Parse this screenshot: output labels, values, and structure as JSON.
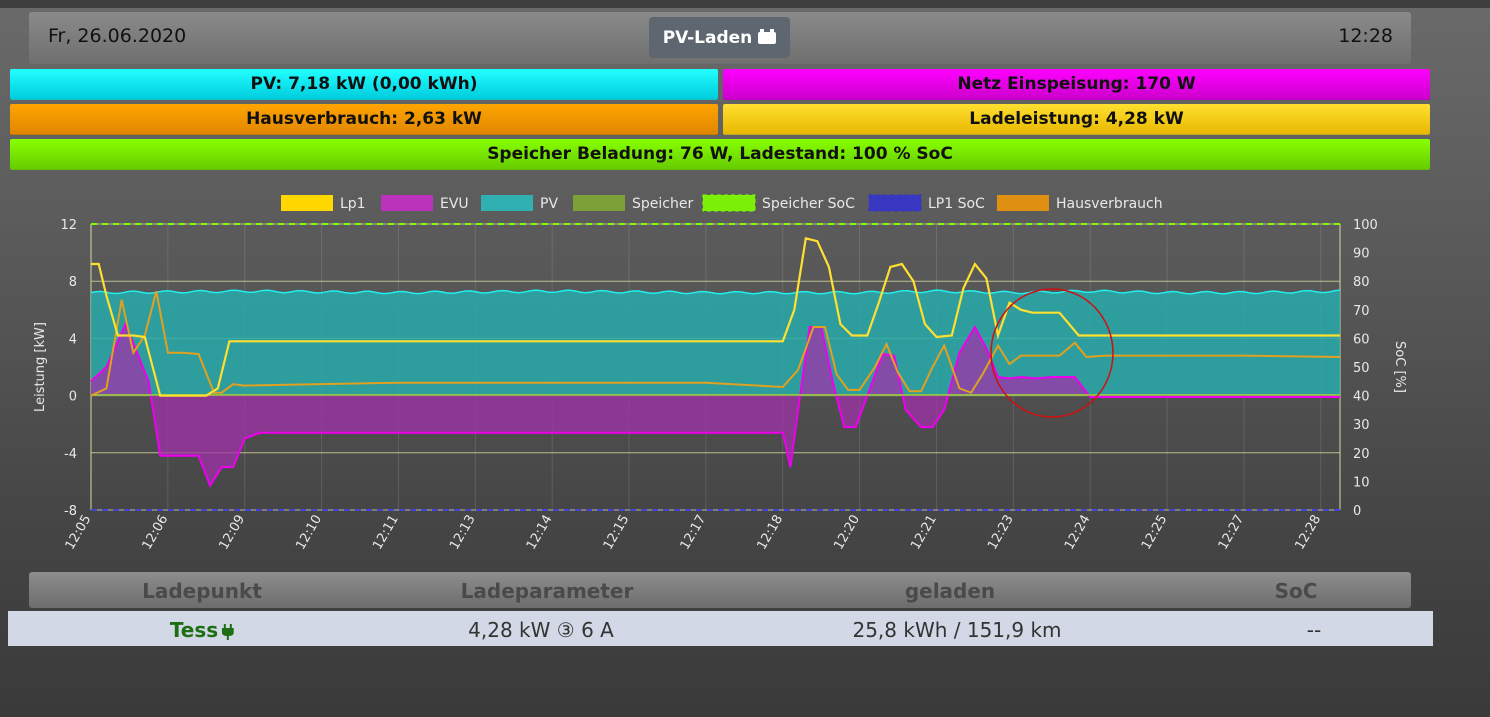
{
  "header": {
    "date": "Fr, 26.06.2020",
    "mode_label": "PV-Laden",
    "mode_icon": "car-battery-icon",
    "time": "12:28"
  },
  "status_bars": {
    "pv": "PV: 7,18 kW (0,00 kWh)",
    "netz": "Netz Einspeisung: 170 W",
    "hausverbrauch": "Hausverbrauch: 2,63 kW",
    "ladeleistung": "Ladeleistung: 4,28 kW",
    "speicher": "Speicher Beladung: 76 W, Ladestand: 100 % SoC"
  },
  "colors": {
    "pv": "#00ffff",
    "netz": "#ff00ff",
    "haus": "#ffa500",
    "lade": "#ffd700",
    "speicher": "#7fff00"
  },
  "chart_data": {
    "type": "line",
    "ylabel": "Leistung [kW]",
    "y2label": "SoC [%]",
    "ylim": [
      -8,
      12
    ],
    "yticks": [
      -8,
      -4,
      0,
      4,
      8,
      12
    ],
    "y2lim": [
      0,
      100
    ],
    "y2ticks": [
      0,
      10,
      20,
      30,
      40,
      50,
      60,
      70,
      80,
      90,
      100
    ],
    "x_ticks": [
      "12:05",
      "12:06",
      "12:09",
      "12:10",
      "12:11",
      "12:13",
      "12:14",
      "12:15",
      "12:17",
      "12:18",
      "12:20",
      "12:21",
      "12:23",
      "12:24",
      "12:25",
      "12:27",
      "12:28"
    ],
    "x_min_index": 0,
    "x_max_index": 16.25,
    "legend": [
      {
        "name": "Lp1",
        "color": "#ffd700",
        "dashed": false
      },
      {
        "name": "EVU",
        "color": "#bb33bb",
        "dashed": false
      },
      {
        "name": "PV",
        "color": "#30b0b0",
        "dashed": false
      },
      {
        "name": "Speicher",
        "color": "#7da038",
        "dashed": false
      },
      {
        "name": "Speicher SoC",
        "color": "#7fff00",
        "dashed": true
      },
      {
        "name": "LP1 SoC",
        "color": "#3333cc",
        "dashed": true
      },
      {
        "name": "Hausverbrauch",
        "color": "#e09010",
        "dashed": false
      }
    ],
    "legend_position": "top",
    "grid": true,
    "series": [
      {
        "name": "PV",
        "axis": "left",
        "x": [
          0,
          2,
          4,
          6,
          8,
          10,
          11,
          12,
          13,
          14,
          15,
          16.25
        ],
        "y": [
          7.2,
          7.3,
          7.2,
          7.3,
          7.2,
          7.2,
          7.3,
          7.2,
          7.3,
          7.2,
          7.2,
          7.3
        ]
      },
      {
        "name": "Lp1",
        "axis": "left",
        "x": [
          0,
          0.1,
          0.2,
          0.35,
          0.55,
          0.7,
          0.9,
          1.1,
          1.3,
          1.5,
          1.65,
          1.8,
          2.0,
          4,
          6,
          8,
          9,
          9.15,
          9.3,
          9.45,
          9.6,
          9.75,
          9.9,
          10.1,
          10.25,
          10.4,
          10.55,
          10.7,
          10.85,
          11.0,
          11.2,
          11.35,
          11.5,
          11.65,
          11.8,
          11.95,
          12.1,
          12.25,
          12.4,
          12.6,
          12.85,
          13.05,
          13.3,
          14,
          15,
          16.25
        ],
        "y": [
          9.2,
          9.2,
          7.0,
          4.2,
          4.2,
          4.1,
          0.0,
          0.0,
          0.0,
          0.0,
          0.5,
          3.8,
          3.8,
          3.8,
          3.8,
          3.8,
          3.8,
          6.0,
          11.0,
          10.8,
          9.0,
          5.0,
          4.2,
          4.2,
          6.5,
          9.0,
          9.2,
          8.0,
          5.0,
          4.1,
          4.2,
          7.5,
          9.2,
          8.2,
          4.2,
          6.5,
          6.0,
          5.8,
          5.8,
          5.8,
          4.2,
          4.2,
          4.2,
          4.2,
          4.2,
          4.2
        ]
      },
      {
        "name": "EVU",
        "axis": "left",
        "x": [
          0,
          0.2,
          0.45,
          0.6,
          0.75,
          0.9,
          1.1,
          1.4,
          1.55,
          1.7,
          1.85,
          2.0,
          2.2,
          4,
          6,
          8,
          9.0,
          9.1,
          9.2,
          9.35,
          9.5,
          9.65,
          9.8,
          9.95,
          10.1,
          10.3,
          10.45,
          10.6,
          10.8,
          10.95,
          11.1,
          11.3,
          11.5,
          11.65,
          11.8,
          11.95,
          12.1,
          12.3,
          12.5,
          12.8,
          13.0,
          13.15,
          14,
          15,
          16.25
        ],
        "y": [
          1.0,
          2.0,
          5.0,
          3.0,
          1.0,
          -4.2,
          -4.2,
          -4.2,
          -6.3,
          -5.0,
          -5.0,
          -3.0,
          -2.6,
          -2.6,
          -2.6,
          -2.6,
          -2.6,
          -5.0,
          -1.0,
          4.8,
          4.8,
          1.0,
          -2.2,
          -2.2,
          0.0,
          2.9,
          2.8,
          -1.0,
          -2.2,
          -2.2,
          -1.0,
          3.0,
          4.8,
          3.3,
          1.3,
          1.2,
          1.3,
          1.2,
          1.3,
          1.3,
          -0.1,
          -0.1,
          -0.1,
          -0.1,
          -0.1
        ]
      },
      {
        "name": "Hausverbrauch",
        "axis": "left",
        "x": [
          0,
          0.2,
          0.4,
          0.55,
          0.7,
          0.85,
          1.0,
          1.2,
          1.4,
          1.6,
          1.7,
          1.85,
          2.0,
          4,
          6,
          8,
          9.0,
          9.2,
          9.4,
          9.55,
          9.7,
          9.85,
          10.0,
          10.2,
          10.35,
          10.5,
          10.65,
          10.8,
          10.95,
          11.1,
          11.3,
          11.45,
          11.6,
          11.8,
          11.95,
          12.1,
          12.3,
          12.6,
          12.8,
          12.95,
          13.2,
          14,
          15,
          16.25
        ],
        "y": [
          0.0,
          0.5,
          6.7,
          3.0,
          4.2,
          7.3,
          3.0,
          3.0,
          2.9,
          0.2,
          0.2,
          0.8,
          0.7,
          0.9,
          0.9,
          0.9,
          0.6,
          1.8,
          4.8,
          4.8,
          1.5,
          0.4,
          0.4,
          2.0,
          3.6,
          1.6,
          0.3,
          0.3,
          2.0,
          3.5,
          0.5,
          0.2,
          1.5,
          3.5,
          2.2,
          2.8,
          2.8,
          2.8,
          3.7,
          2.7,
          2.8,
          2.8,
          2.8,
          2.7
        ]
      },
      {
        "name": "Speicher",
        "axis": "left",
        "x": [
          0,
          16.25
        ],
        "y": [
          0.05,
          0.05
        ]
      },
      {
        "name": "Speicher SoC",
        "axis": "right",
        "x": [
          0,
          16.25
        ],
        "y": [
          100,
          100
        ]
      },
      {
        "name": "LP1 SoC",
        "axis": "right",
        "x": [
          0,
          16.25
        ],
        "y": [
          0,
          0
        ]
      }
    ]
  },
  "table": {
    "headers": [
      "Ladepunkt",
      "Ladeparameter",
      "geladen",
      "SoC"
    ],
    "row": {
      "ladepunkt": "Tess",
      "ladeparameter": "4,28 kW ③ 6 A",
      "geladen": "25,8 kWh / 151,9 km",
      "soc": "--"
    }
  }
}
